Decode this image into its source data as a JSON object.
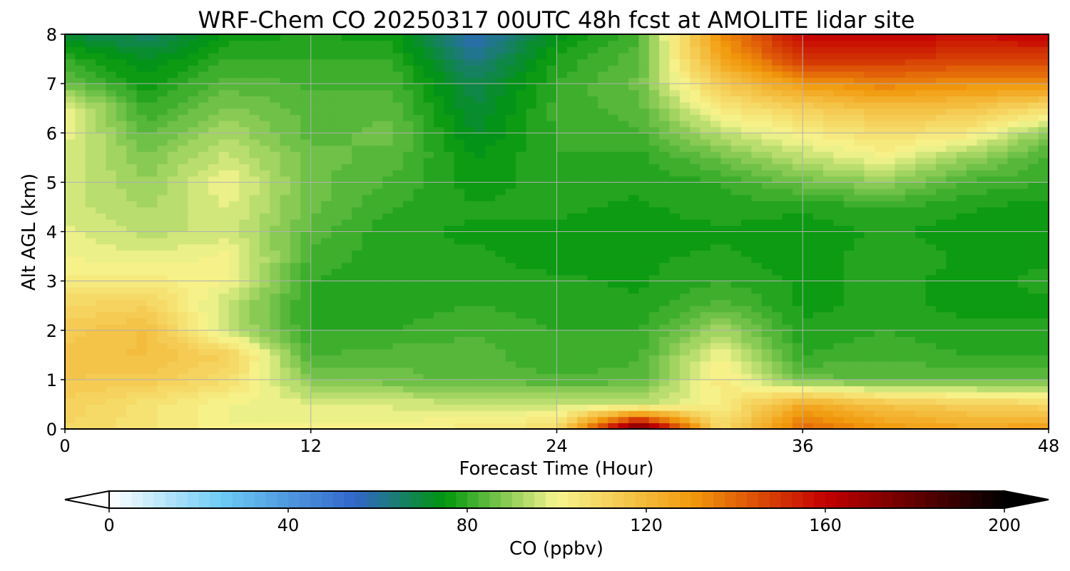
{
  "chart_data": {
    "type": "heatmap",
    "subtype": "filled-contour",
    "title": "WRF-Chem CO  20250317 00UTC 48h fcst at AMOLITE lidar site",
    "xlabel": "Forecast Time (Hour)",
    "ylabel": "Alt AGL (km)",
    "xlim": [
      0,
      48
    ],
    "ylim": [
      0,
      8
    ],
    "xticks": [
      0,
      12,
      24,
      36,
      48
    ],
    "yticks": [
      0,
      1,
      2,
      3,
      4,
      5,
      6,
      7,
      8
    ],
    "grid": true,
    "x": [
      0,
      4,
      8,
      12,
      16,
      20,
      24,
      28,
      32,
      36,
      40,
      44,
      48
    ],
    "y": [
      0,
      0.5,
      1,
      1.5,
      2,
      2.5,
      3,
      3.5,
      4,
      4.5,
      5,
      5.5,
      6,
      6.5,
      7,
      7.5,
      8
    ],
    "z": [
      [
        110,
        106,
        100,
        101,
        101,
        104,
        108,
        185,
        108,
        140,
        130,
        126,
        128
      ],
      [
        112,
        106,
        100,
        98,
        97,
        96,
        96,
        94,
        102,
        125,
        116,
        112,
        110
      ],
      [
        115,
        114,
        108,
        88,
        86,
        84,
        83,
        84,
        104,
        86,
        85,
        85,
        85
      ],
      [
        116,
        118,
        112,
        82,
        84,
        84,
        80,
        82,
        100,
        80,
        82,
        80,
        80
      ],
      [
        114,
        118,
        95,
        80,
        80,
        82,
        80,
        80,
        92,
        78,
        80,
        78,
        78
      ],
      [
        110,
        112,
        94,
        79,
        79,
        80,
        79,
        78,
        84,
        77,
        78,
        77,
        77
      ],
      [
        104,
        104,
        100,
        80,
        78,
        79,
        78,
        77,
        80,
        77,
        78,
        77,
        78
      ],
      [
        100,
        98,
        101,
        82,
        78,
        78,
        76,
        77,
        78,
        76,
        79,
        77,
        77
      ],
      [
        98,
        94,
        96,
        84,
        78,
        77,
        77,
        76,
        77,
        76,
        78,
        76,
        76
      ],
      [
        96,
        92,
        98,
        86,
        80,
        78,
        78,
        77,
        79,
        78,
        80,
        78,
        76
      ],
      [
        97,
        90,
        100,
        86,
        82,
        76,
        79,
        78,
        80,
        86,
        90,
        82,
        80
      ],
      [
        97,
        88,
        96,
        86,
        84,
        75,
        80,
        79,
        86,
        94,
        100,
        90,
        82
      ],
      [
        99,
        84,
        92,
        84,
        86,
        72,
        80,
        82,
        94,
        102,
        108,
        104,
        88
      ],
      [
        100,
        80,
        88,
        84,
        84,
        70,
        81,
        84,
        104,
        112,
        118,
        116,
        108
      ],
      [
        86,
        76,
        84,
        82,
        82,
        68,
        80,
        86,
        114,
        130,
        135,
        132,
        132
      ],
      [
        80,
        72,
        80,
        80,
        80,
        62,
        78,
        84,
        126,
        150,
        150,
        148,
        148
      ],
      [
        70,
        66,
        76,
        78,
        76,
        56,
        74,
        82,
        132,
        160,
        160,
        158,
        160
      ]
    ],
    "colorbar": {
      "label": "CO  (ppbv)",
      "range": [
        0,
        200
      ],
      "ticks": [
        0,
        40,
        80,
        120,
        160,
        200
      ],
      "extend": "both",
      "levels": 80,
      "colors": [
        "#ffffff",
        "#6ecbf5",
        "#3166c9",
        "#00960c",
        "#f7f58e",
        "#f29a0d",
        "#c40000",
        "#000000"
      ],
      "stops": [
        0,
        25,
        55,
        75,
        100,
        130,
        160,
        200
      ]
    }
  }
}
